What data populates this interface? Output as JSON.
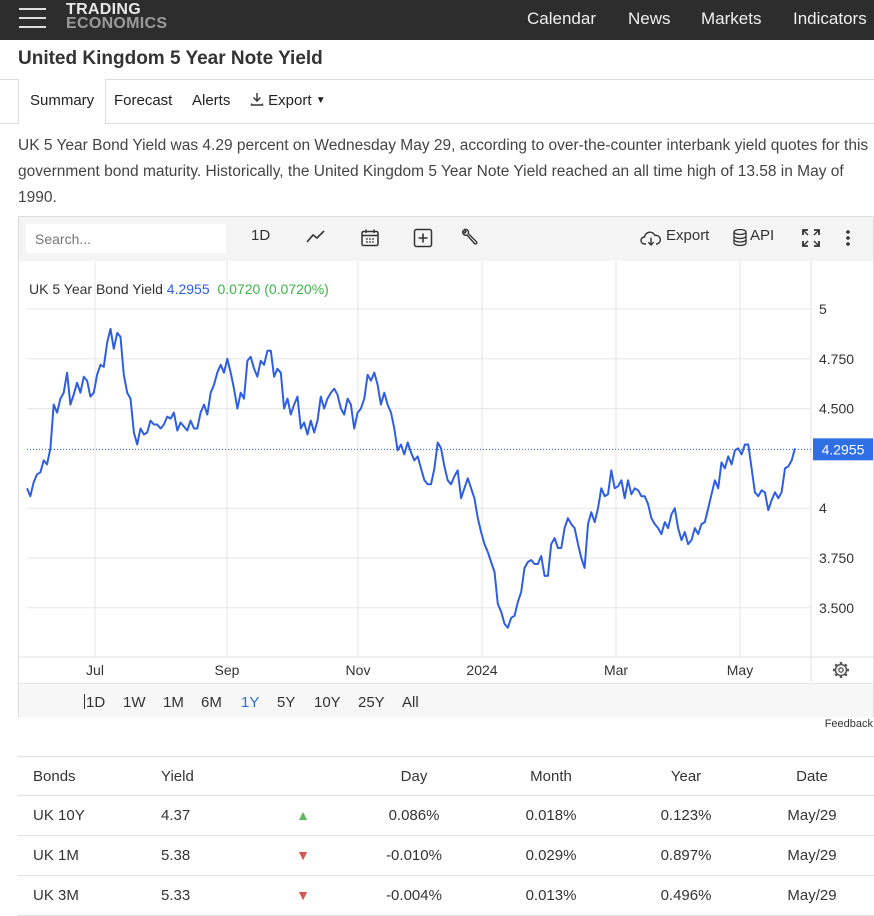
{
  "nav": {
    "logo_line1": "TRADING",
    "logo_line2": "ECONOMICS",
    "items": [
      "Calendar",
      "News",
      "Markets",
      "Indicators"
    ]
  },
  "page": {
    "title": "United Kingdom 5 Year Note Yield"
  },
  "tabs": [
    "Summary",
    "Forecast",
    "Alerts",
    "Export"
  ],
  "description": "UK 5 Year Bond Yield was 4.29 percent on Wednesday May 29, according to over-the-counter interbank yield quotes for this government bond maturity. Historically, the United Kingdom 5 Year Note Yield reached an all time high of 13.58 in May of 1990.",
  "toolbar": {
    "search_placeholder": "Search...",
    "interval": "1D",
    "export_label": "Export",
    "api_label": "API"
  },
  "legend": {
    "name": "UK 5 Year Bond Yield",
    "last": "4.2955",
    "change": "0.0720 (0.0720%)"
  },
  "colors": {
    "line": "#2f5fe0",
    "up": "#5cb85c",
    "down": "#d9534f",
    "accent": "#2a6fd8",
    "price_tag": "#2f6fe4"
  },
  "ranges": [
    "1D",
    "1W",
    "1M",
    "6M",
    "1Y",
    "5Y",
    "10Y",
    "25Y",
    "All"
  ],
  "active_range": "1Y",
  "feedback": "Feedback",
  "chart_data": {
    "type": "line",
    "series": [
      {
        "name": "UK 5 Year Bond Yield"
      }
    ],
    "x_ticks": [
      "Jul",
      "Sep",
      "Nov",
      "2024",
      "Mar",
      "May"
    ],
    "y_ticks": [
      "5",
      "4.750",
      "4.500",
      "4",
      "3.750",
      "3.500"
    ],
    "last_value_label": "4.2955",
    "ylim": [
      3.25,
      5.0
    ],
    "grid": true,
    "x_index_range": [
      0,
      230
    ],
    "points": [
      [
        0,
        4.1
      ],
      [
        1,
        4.06
      ],
      [
        2,
        4.13
      ],
      [
        3,
        4.17
      ],
      [
        4,
        4.18
      ],
      [
        5,
        4.24
      ],
      [
        6,
        4.22
      ],
      [
        7,
        4.3
      ],
      [
        8,
        4.52
      ],
      [
        9,
        4.48
      ],
      [
        10,
        4.55
      ],
      [
        11,
        4.58
      ],
      [
        12,
        4.68
      ],
      [
        13,
        4.52
      ],
      [
        14,
        4.57
      ],
      [
        15,
        4.63
      ],
      [
        16,
        4.58
      ],
      [
        17,
        4.66
      ],
      [
        18,
        4.64
      ],
      [
        19,
        4.56
      ],
      [
        20,
        4.58
      ],
      [
        21,
        4.67
      ],
      [
        22,
        4.72
      ],
      [
        23,
        4.71
      ],
      [
        24,
        4.83
      ],
      [
        25,
        4.9
      ],
      [
        26,
        4.8
      ],
      [
        27,
        4.88
      ],
      [
        28,
        4.86
      ],
      [
        29,
        4.67
      ],
      [
        30,
        4.58
      ],
      [
        31,
        4.55
      ],
      [
        32,
        4.38
      ],
      [
        33,
        4.32
      ],
      [
        34,
        4.4
      ],
      [
        35,
        4.37
      ],
      [
        36,
        4.38
      ],
      [
        37,
        4.44
      ],
      [
        38,
        4.42
      ],
      [
        39,
        4.42
      ],
      [
        40,
        4.4
      ],
      [
        41,
        4.42
      ],
      [
        42,
        4.46
      ],
      [
        43,
        4.45
      ],
      [
        44,
        4.48
      ],
      [
        45,
        4.39
      ],
      [
        46,
        4.43
      ],
      [
        47,
        4.41
      ],
      [
        48,
        4.39
      ],
      [
        49,
        4.44
      ],
      [
        50,
        4.4
      ],
      [
        51,
        4.4
      ],
      [
        52,
        4.48
      ],
      [
        53,
        4.52
      ],
      [
        54,
        4.47
      ],
      [
        55,
        4.58
      ],
      [
        56,
        4.62
      ],
      [
        57,
        4.68
      ],
      [
        58,
        4.72
      ],
      [
        59,
        4.68
      ],
      [
        60,
        4.75
      ],
      [
        61,
        4.68
      ],
      [
        62,
        4.6
      ],
      [
        63,
        4.5
      ],
      [
        64,
        4.58
      ],
      [
        65,
        4.55
      ],
      [
        66,
        4.74
      ],
      [
        67,
        4.76
      ],
      [
        68,
        4.7
      ],
      [
        69,
        4.66
      ],
      [
        70,
        4.74
      ],
      [
        71,
        4.72
      ],
      [
        72,
        4.79
      ],
      [
        73,
        4.79
      ],
      [
        74,
        4.66
      ],
      [
        75,
        4.7
      ],
      [
        76,
        4.68
      ],
      [
        77,
        4.5
      ],
      [
        78,
        4.55
      ],
      [
        79,
        4.47
      ],
      [
        80,
        4.52
      ],
      [
        81,
        4.56
      ],
      [
        82,
        4.4
      ],
      [
        83,
        4.43
      ],
      [
        84,
        4.37
      ],
      [
        85,
        4.44
      ],
      [
        86,
        4.38
      ],
      [
        87,
        4.44
      ],
      [
        88,
        4.56
      ],
      [
        89,
        4.5
      ],
      [
        90,
        4.55
      ],
      [
        91,
        4.58
      ],
      [
        92,
        4.6
      ],
      [
        93,
        4.57
      ],
      [
        94,
        4.5
      ],
      [
        95,
        4.47
      ],
      [
        96,
        4.55
      ],
      [
        97,
        4.52
      ],
      [
        98,
        4.4
      ],
      [
        99,
        4.48
      ],
      [
        100,
        4.5
      ],
      [
        101,
        4.55
      ],
      [
        102,
        4.67
      ],
      [
        103,
        4.64
      ],
      [
        104,
        4.68
      ],
      [
        105,
        4.62
      ],
      [
        106,
        4.52
      ],
      [
        107,
        4.58
      ],
      [
        108,
        4.52
      ],
      [
        109,
        4.48
      ],
      [
        110,
        4.4
      ],
      [
        111,
        4.29
      ],
      [
        112,
        4.32
      ],
      [
        113,
        4.27
      ],
      [
        114,
        4.33
      ],
      [
        115,
        4.28
      ],
      [
        116,
        4.24
      ],
      [
        117,
        4.26
      ],
      [
        118,
        4.2
      ],
      [
        119,
        4.14
      ],
      [
        120,
        4.12
      ],
      [
        121,
        4.12
      ],
      [
        122,
        4.2
      ],
      [
        123,
        4.33
      ],
      [
        124,
        4.3
      ],
      [
        125,
        4.21
      ],
      [
        126,
        4.14
      ],
      [
        127,
        4.12
      ],
      [
        128,
        4.16
      ],
      [
        129,
        4.19
      ],
      [
        130,
        4.05
      ],
      [
        131,
        4.1
      ],
      [
        132,
        4.15
      ],
      [
        133,
        4.1
      ],
      [
        134,
        4.05
      ],
      [
        135,
        3.95
      ],
      [
        136,
        3.88
      ],
      [
        137,
        3.82
      ],
      [
        138,
        3.78
      ],
      [
        139,
        3.73
      ],
      [
        140,
        3.68
      ],
      [
        141,
        3.52
      ],
      [
        142,
        3.48
      ],
      [
        143,
        3.42
      ],
      [
        144,
        3.4
      ],
      [
        145,
        3.45
      ],
      [
        146,
        3.46
      ],
      [
        147,
        3.53
      ],
      [
        148,
        3.58
      ],
      [
        149,
        3.7
      ],
      [
        150,
        3.73
      ],
      [
        151,
        3.74
      ],
      [
        152,
        3.72
      ],
      [
        153,
        3.72
      ],
      [
        154,
        3.76
      ],
      [
        155,
        3.66
      ],
      [
        156,
        3.66
      ],
      [
        157,
        3.82
      ],
      [
        158,
        3.85
      ],
      [
        159,
        3.8
      ],
      [
        160,
        3.8
      ],
      [
        161,
        3.9
      ],
      [
        162,
        3.95
      ],
      [
        163,
        3.92
      ],
      [
        164,
        3.9
      ],
      [
        165,
        3.82
      ],
      [
        166,
        3.75
      ],
      [
        167,
        3.7
      ],
      [
        168,
        3.92
      ],
      [
        169,
        3.98
      ],
      [
        170,
        3.93
      ],
      [
        171,
        4.0
      ],
      [
        172,
        4.1
      ],
      [
        173,
        4.06
      ],
      [
        174,
        4.07
      ],
      [
        175,
        4.19
      ],
      [
        176,
        4.1
      ],
      [
        177,
        4.11
      ],
      [
        178,
        4.14
      ],
      [
        179,
        4.05
      ],
      [
        180,
        4.14
      ],
      [
        181,
        4.07
      ],
      [
        182,
        4.1
      ],
      [
        183,
        4.09
      ],
      [
        184,
        4.06
      ],
      [
        185,
        4.06
      ],
      [
        186,
        4.02
      ],
      [
        187,
        3.95
      ],
      [
        188,
        3.92
      ],
      [
        189,
        3.9
      ],
      [
        190,
        3.87
      ],
      [
        191,
        3.93
      ],
      [
        192,
        3.9
      ],
      [
        193,
        3.97
      ],
      [
        194,
        4.0
      ],
      [
        195,
        3.9
      ],
      [
        196,
        3.84
      ],
      [
        197,
        3.88
      ],
      [
        198,
        3.82
      ],
      [
        199,
        3.84
      ],
      [
        200,
        3.9
      ],
      [
        201,
        3.87
      ],
      [
        202,
        3.92
      ],
      [
        203,
        3.93
      ],
      [
        204,
        4.0
      ],
      [
        205,
        4.07
      ],
      [
        206,
        4.14
      ],
      [
        207,
        4.1
      ],
      [
        208,
        4.23
      ],
      [
        209,
        4.2
      ],
      [
        210,
        4.26
      ],
      [
        211,
        4.22
      ],
      [
        212,
        4.29
      ],
      [
        213,
        4.3
      ],
      [
        214,
        4.27
      ],
      [
        215,
        4.32
      ],
      [
        216,
        4.32
      ],
      [
        217,
        4.2
      ],
      [
        218,
        4.08
      ],
      [
        219,
        4.06
      ],
      [
        220,
        4.09
      ],
      [
        221,
        4.08
      ],
      [
        222,
        3.99
      ],
      [
        223,
        4.04
      ],
      [
        224,
        4.08
      ],
      [
        225,
        4.05
      ],
      [
        226,
        4.08
      ],
      [
        227,
        4.2
      ],
      [
        228,
        4.21
      ],
      [
        229,
        4.24
      ],
      [
        230,
        4.3
      ]
    ]
  },
  "bonds_table": {
    "headers": [
      "Bonds",
      "Yield",
      "",
      "Day",
      "Month",
      "Year",
      "Date"
    ],
    "rows": [
      {
        "name": "UK 10Y",
        "yield": "4.37",
        "dir": "up",
        "day": "0.086%",
        "month": "0.018%",
        "year": "0.123%",
        "date": "May/29"
      },
      {
        "name": "UK 1M",
        "yield": "5.38",
        "dir": "down",
        "day": "-0.010%",
        "month": "0.029%",
        "year": "0.897%",
        "date": "May/29"
      },
      {
        "name": "UK 3M",
        "yield": "5.33",
        "dir": "down",
        "day": "-0.004%",
        "month": "0.013%",
        "year": "0.496%",
        "date": "May/29"
      }
    ]
  }
}
